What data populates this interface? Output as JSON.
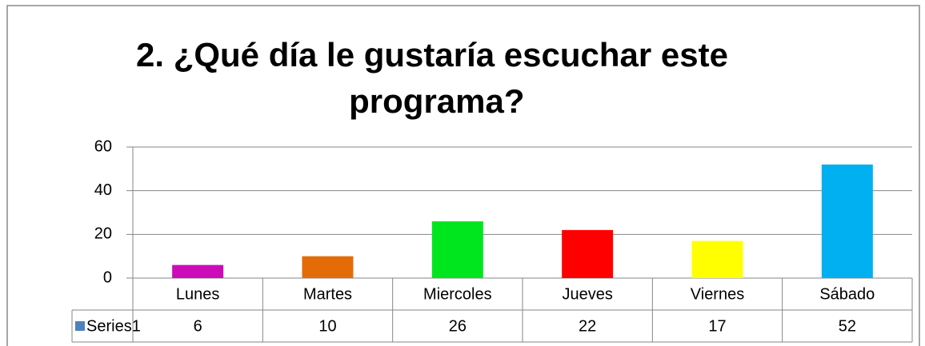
{
  "chart_data": {
    "type": "bar",
    "title": "2. ¿Qué día le gustaría escuchar este programa?",
    "categories": [
      "Lunes",
      "Martes",
      "Miercoles",
      "Jueves",
      "Viernes",
      "Sábado"
    ],
    "series": [
      {
        "name": "Series1",
        "color": "#4f81bd",
        "colors": [
          "#cc0cb8",
          "#e36c09",
          "#00e61e",
          "#ff0000",
          "#ffff00",
          "#00b0f0"
        ],
        "values": [
          6,
          10,
          26,
          22,
          17,
          52
        ]
      }
    ],
    "ylim": [
      0,
      60
    ],
    "yticks": [
      0,
      20,
      40,
      60
    ],
    "grid": true,
    "data_table": true
  }
}
